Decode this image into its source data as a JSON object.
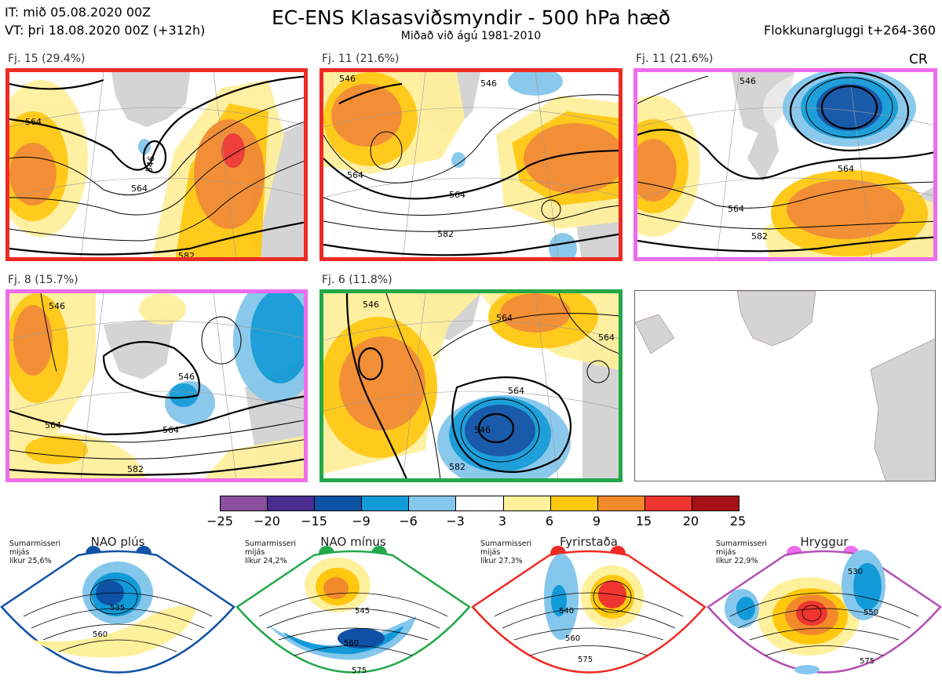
{
  "header": {
    "line_it": "IT: mið 05.08.2020 00Z",
    "line_vt": "VT: þri 18.08.2020 00Z  (+312h)",
    "title": "EC-ENS Klasasviðsmyndir - 500 hPa hæð",
    "subtitle": "Miðað við ágú 1981-2010",
    "window": "Flokkunargluggi t+264-360",
    "cr": "CR"
  },
  "clusters": [
    {
      "label": "Fj. 15 (29.4%)",
      "border": "#ee2a24",
      "iso": [
        "546",
        "564",
        "564",
        "582"
      ]
    },
    {
      "label": "Fj. 11 (21.6%)",
      "border": "#ee2a24",
      "iso": [
        "546",
        "546",
        "564",
        "564",
        "582"
      ]
    },
    {
      "label": "Fj. 11 (21.6%)",
      "border": "#ee6cee",
      "iso": [
        "546",
        "564",
        "564",
        "582"
      ]
    },
    {
      "label": "Fj. 8 (15.7%)",
      "border": "#ee6cee",
      "iso": [
        "546",
        "546",
        "564",
        "564",
        "582"
      ]
    },
    {
      "label": "Fj. 6 (11.8%)",
      "border": "#22a84a",
      "iso": [
        "546",
        "564",
        "564",
        "564",
        "546",
        "582"
      ]
    }
  ],
  "colorbar": {
    "ticks": [
      "−25",
      "−20",
      "−15",
      "−9",
      "−6",
      "−3",
      "3",
      "6",
      "9",
      "15",
      "20",
      "25"
    ],
    "colors": [
      "#8b4fa0",
      "#4a2d8e",
      "#0e52a6",
      "#129ad8",
      "#85c7ec",
      "#ffffff",
      "#fff09c",
      "#ffc80f",
      "#f28a2c",
      "#ee3530",
      "#a50f15"
    ]
  },
  "regimes": [
    {
      "title": "NAO plús",
      "info": "Sumarmisseri\nmijás\nlíkur 25,6%",
      "color": "#1052a5",
      "iso": [
        "535",
        "560"
      ]
    },
    {
      "title": "NAO mínus",
      "info": "Sumarmisseri\nmijás\nlíkur 24,2%",
      "color": "#22a84a",
      "iso": [
        "545",
        "560",
        "575"
      ]
    },
    {
      "title": "Fyrirstaða",
      "info": "Sumarmisseri\nmijás\nlíkur 27,3%",
      "color": "#ee2a24",
      "iso": [
        "540",
        "560",
        "575"
      ]
    },
    {
      "title": "Hryggur",
      "info": "Sumarmisseri\nmijás\nlíkur 22,9%",
      "color": "#ee6cee",
      "iso": [
        "530",
        "550",
        "575"
      ]
    }
  ]
}
